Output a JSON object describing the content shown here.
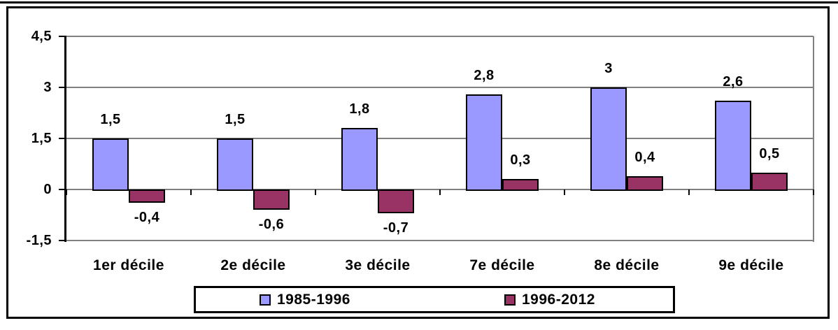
{
  "chart_data": {
    "type": "bar",
    "categories": [
      "1er décile",
      "2e décile",
      "3e décile",
      "7e décile",
      "8e décile",
      "9e décile"
    ],
    "series": [
      {
        "name": "1985-1996",
        "color": "#9999FF",
        "values": [
          1.5,
          1.5,
          1.8,
          2.8,
          3,
          2.6
        ],
        "labels": [
          "1,5",
          "1,5",
          "1,8",
          "2,8",
          "3",
          "2,6"
        ]
      },
      {
        "name": "1996-2012",
        "color": "#993366",
        "values": [
          -0.4,
          -0.6,
          -0.7,
          0.3,
          0.4,
          0.5
        ],
        "labels": [
          "-0,4",
          "-0,6",
          "-0,7",
          "0,3",
          "0,4",
          "0,5"
        ]
      }
    ],
    "ylim": [
      -1.5,
      4.5
    ],
    "yticks": [
      {
        "value": 4.5,
        "label": "4,5"
      },
      {
        "value": 3,
        "label": "3"
      },
      {
        "value": 1.5,
        "label": "1,5"
      },
      {
        "value": 0,
        "label": "0"
      },
      {
        "value": -1.5,
        "label": "-1,5"
      }
    ],
    "grid": true,
    "grid_color": "#808080",
    "axis_color": "#000000",
    "bar_border_color": "#000000",
    "legend_position": "bottom"
  }
}
